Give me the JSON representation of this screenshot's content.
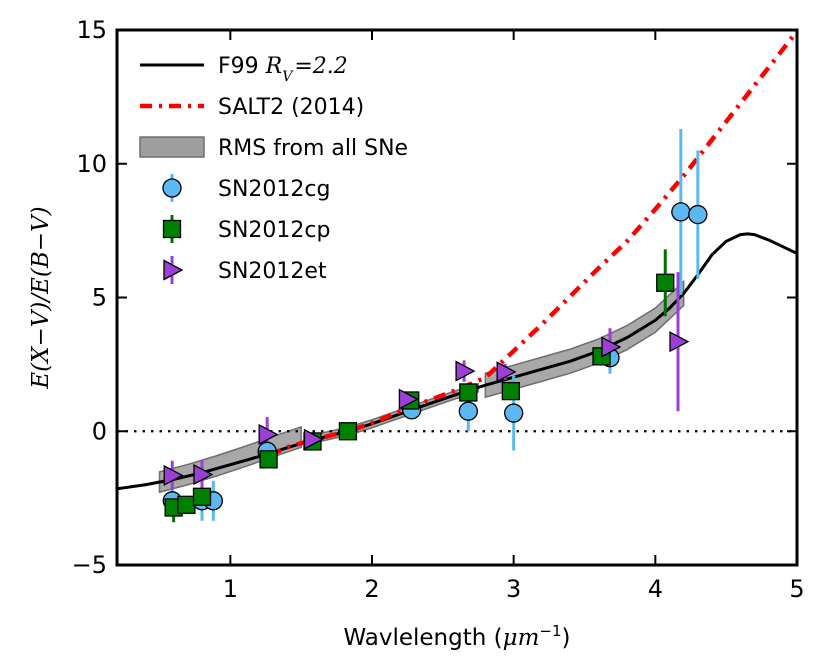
{
  "chart_data": {
    "type": "scatter",
    "title": "",
    "xlabel": "Wavlelength (μm⁻¹)",
    "xlabel_main": "Wavlelength (",
    "xlabel_unit": "μm",
    "xlabel_exp": "−1",
    "xlabel_close": ")",
    "ylabel": "E(X−V)/E(B−V)",
    "xlim": [
      0.2,
      5.0
    ],
    "ylim": [
      -5,
      15
    ],
    "xticks": [
      1,
      2,
      3,
      4,
      5
    ],
    "xtick_labels": [
      "1",
      "2",
      "3",
      "4",
      "5"
    ],
    "yticks": [
      -5,
      0,
      5,
      10,
      15
    ],
    "ytick_labels": [
      "−5",
      "0",
      "5",
      "10",
      "15"
    ],
    "reference_line": {
      "y": 0,
      "style": "dotted",
      "color": "#000000"
    },
    "legend": {
      "placement": "top-left",
      "entries": [
        {
          "key": "f99",
          "label": "F99 ",
          "math": "R",
          "math_sub": "V",
          "math_val": "=2.2"
        },
        {
          "key": "salt2",
          "label": "SALT2 (2014)"
        },
        {
          "key": "rms",
          "label": "RMS from all SNe"
        },
        {
          "key": "cg",
          "label": "SN2012cg"
        },
        {
          "key": "cp",
          "label": "SN2012cp"
        },
        {
          "key": "et",
          "label": "SN2012et"
        }
      ]
    },
    "lines": [
      {
        "name": "F99 R_V=2.2",
        "color": "#000000",
        "style": "solid",
        "x": [
          0.2,
          0.4,
          0.6,
          0.8,
          1.0,
          1.2,
          1.4,
          1.6,
          1.83,
          2.0,
          2.2,
          2.4,
          2.6,
          2.8,
          3.0,
          3.2,
          3.4,
          3.6,
          3.8,
          4.0,
          4.1,
          4.2,
          4.3,
          4.4,
          4.5,
          4.6,
          4.65,
          4.7,
          4.8,
          4.9,
          5.0
        ],
        "y": [
          -2.15,
          -2.0,
          -1.8,
          -1.55,
          -1.25,
          -0.95,
          -0.62,
          -0.3,
          0.0,
          0.28,
          0.65,
          1.02,
          1.38,
          1.72,
          2.02,
          2.32,
          2.62,
          3.0,
          3.5,
          4.15,
          4.6,
          5.15,
          5.85,
          6.6,
          7.1,
          7.35,
          7.38,
          7.35,
          7.15,
          6.9,
          6.65
        ]
      },
      {
        "name": "SALT2 (2014)",
        "color": "#ff0000",
        "style": "dash-dot",
        "x": [
          1.28,
          1.4,
          1.6,
          1.83,
          2.0,
          2.2,
          2.4,
          2.6,
          2.8,
          2.9,
          3.0,
          3.2,
          3.4,
          3.6,
          3.8,
          4.0,
          4.2,
          4.4,
          4.6,
          4.8,
          5.0
        ],
        "y": [
          -0.9,
          -0.6,
          -0.3,
          0.0,
          0.3,
          0.75,
          1.15,
          1.55,
          2.0,
          2.5,
          3.0,
          4.0,
          5.05,
          6.1,
          7.1,
          8.3,
          9.55,
          10.9,
          12.25,
          13.6,
          14.95
        ]
      }
    ],
    "rms_bands": [
      {
        "name": "RMS from all SNe",
        "color": "#9e9e9e",
        "x": [
          0.5,
          0.7,
          0.9,
          1.1,
          1.3,
          1.5
        ],
        "y": [
          -1.9,
          -1.62,
          -1.3,
          -0.95,
          -0.58,
          -0.22
        ],
        "half_width": 0.38
      },
      {
        "name": "RMS from all SNe",
        "color": "#9e9e9e",
        "x": [
          1.55,
          1.83,
          2.0,
          2.2,
          2.4,
          2.6,
          2.75
        ],
        "y": [
          -0.33,
          0.0,
          0.28,
          0.65,
          1.02,
          1.38,
          1.62
        ],
        "half_width": 0.15
      },
      {
        "name": "RMS from all SNe",
        "color": "#9e9e9e",
        "x": [
          2.8,
          3.0,
          3.2,
          3.4,
          3.6,
          3.8,
          4.0,
          4.2
        ],
        "y": [
          1.72,
          2.02,
          2.32,
          2.62,
          3.0,
          3.5,
          4.15,
          5.15
        ],
        "half_width": 0.45
      }
    ],
    "series": [
      {
        "name": "SN2012cg",
        "marker": "circle",
        "color": "#5bb8f0",
        "errcolor": "#5bb8f0",
        "points": [
          {
            "x": 0.59,
            "y": -2.6,
            "err": 0.6
          },
          {
            "x": 0.8,
            "y": -2.6,
            "err": 0.75
          },
          {
            "x": 0.88,
            "y": -2.6,
            "err": 0.75
          },
          {
            "x": 1.26,
            "y": -0.75,
            "err": 0.3
          },
          {
            "x": 2.28,
            "y": 0.8,
            "err": 0.3
          },
          {
            "x": 2.68,
            "y": 0.75,
            "err": 0.75
          },
          {
            "x": 3.0,
            "y": 0.68,
            "err": 1.4
          },
          {
            "x": 3.68,
            "y": 2.75,
            "err": 0.6
          },
          {
            "x": 4.18,
            "y": 8.2,
            "err": 3.1
          },
          {
            "x": 4.3,
            "y": 8.1,
            "err": 2.4
          }
        ]
      },
      {
        "name": "SN2012cp",
        "marker": "square",
        "color": "#008000",
        "errcolor": "#007000",
        "points": [
          {
            "x": 0.6,
            "y": -2.85,
            "err": 0.55
          },
          {
            "x": 0.69,
            "y": -2.75,
            "err": 0.25
          },
          {
            "x": 0.8,
            "y": -2.45,
            "err": 0.3
          },
          {
            "x": 1.27,
            "y": -1.05,
            "err": 0.3
          },
          {
            "x": 1.58,
            "y": -0.38,
            "err": 0.2
          },
          {
            "x": 1.83,
            "y": 0.0,
            "err": 0.15
          },
          {
            "x": 2.27,
            "y": 1.15,
            "err": 0.2
          },
          {
            "x": 2.68,
            "y": 1.45,
            "err": 0.3
          },
          {
            "x": 2.98,
            "y": 1.5,
            "err": 0.3
          },
          {
            "x": 3.62,
            "y": 2.8,
            "err": 0.3
          },
          {
            "x": 4.07,
            "y": 5.55,
            "err": 1.25
          }
        ]
      },
      {
        "name": "SN2012et",
        "marker": "triangle-right",
        "color": "#9b3fd6",
        "errcolor": "#9b3fd6",
        "points": [
          {
            "x": 0.59,
            "y": -1.65,
            "err": 0.55
          },
          {
            "x": 0.8,
            "y": -1.62,
            "err": 0.55
          },
          {
            "x": 1.26,
            "y": -0.12,
            "err": 0.65
          },
          {
            "x": 1.58,
            "y": -0.3,
            "err": 0.2
          },
          {
            "x": 2.25,
            "y": 1.2,
            "err": 0.2
          },
          {
            "x": 2.65,
            "y": 2.25,
            "err": 0.4
          },
          {
            "x": 2.94,
            "y": 2.22,
            "err": 0.3
          },
          {
            "x": 3.68,
            "y": 3.15,
            "err": 0.7
          },
          {
            "x": 4.16,
            "y": 3.35,
            "err": 2.6
          }
        ]
      }
    ]
  }
}
